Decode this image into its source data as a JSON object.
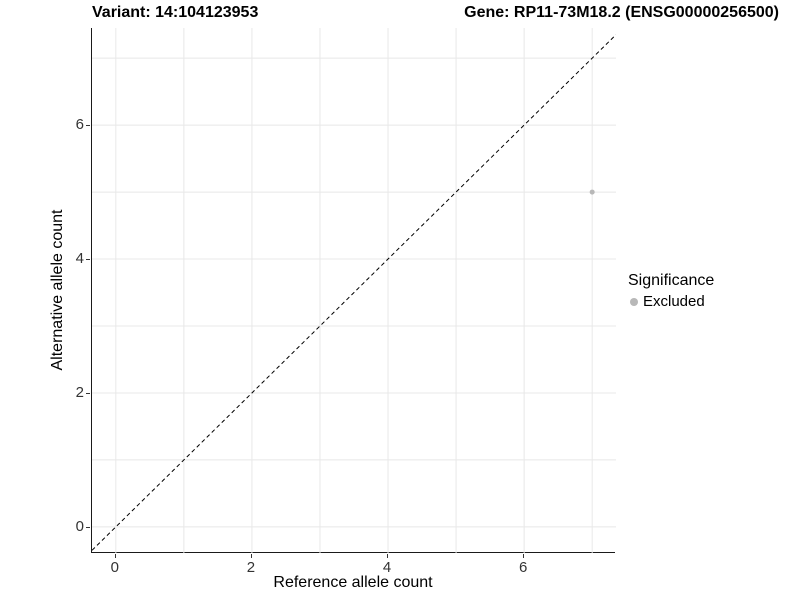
{
  "header": {
    "variant_title": "Variant: 14:104123953",
    "gene_title": "Gene: RP11-73M18.2 (ENSG00000256500)"
  },
  "chart_data": {
    "type": "scatter",
    "title_left": "Variant: 14:104123953",
    "title_right": "Gene: RP11-73M18.2 (ENSG00000256500)",
    "xlabel": "Reference allele count",
    "ylabel": "Alternative allele count",
    "xlim": [
      -0.35,
      7.35
    ],
    "ylim": [
      -0.39,
      7.45
    ],
    "x_ticks": [
      0,
      2,
      4,
      6
    ],
    "y_ticks": [
      0,
      2,
      4,
      6
    ],
    "grid": "on",
    "gridline_positions": [
      0,
      1,
      2,
      3,
      4,
      5,
      6,
      7
    ],
    "series": [
      {
        "name": "Excluded",
        "color": "#b8b8b8",
        "points": [
          {
            "x": 7,
            "y": 5
          }
        ]
      }
    ],
    "reference_line": {
      "type": "identity",
      "slope": 1,
      "intercept": 0,
      "style": "dashed",
      "color": "#000000"
    },
    "legend": {
      "title": "Significance",
      "position": "right",
      "entries": [
        {
          "label": "Excluded",
          "color": "#b8b8b8"
        }
      ]
    }
  },
  "colors": {
    "background": "#ffffff",
    "axis_line": "#1a1a1a",
    "tick_text": "#333333",
    "gridline": "#e8e8e8",
    "point": "#b8b8b8"
  }
}
